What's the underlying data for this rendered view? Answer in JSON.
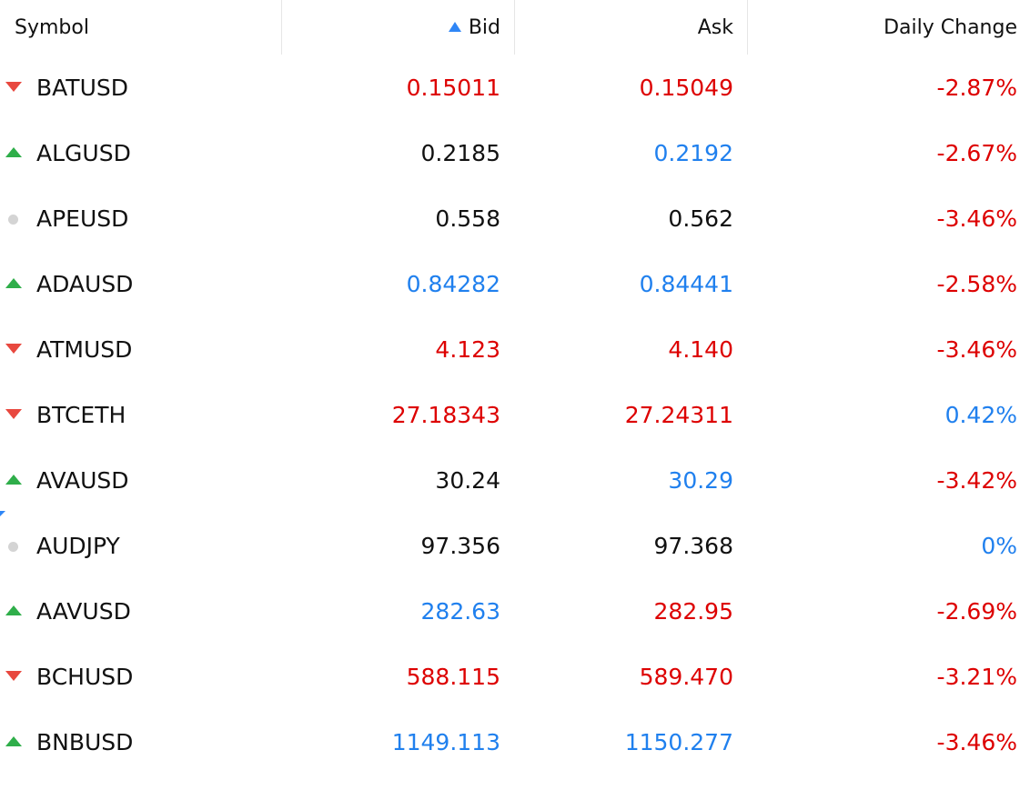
{
  "header": {
    "symbol": "Symbol",
    "bid": "Bid",
    "ask": "Ask",
    "daily_change": "Daily Change",
    "sort_icon": "sort-ascending-icon"
  },
  "colors": {
    "down": "#dd0000",
    "up": "#2080ee",
    "neutral": "#111111",
    "arrow_up": "#2fae4a",
    "arrow_down": "#e8483f",
    "sort_accent": "#2f86f6"
  },
  "rows": [
    {
      "symbol": "BATUSD",
      "trend": "down",
      "bid": "0.15011",
      "bid_color": "red",
      "ask": "0.15049",
      "ask_color": "red",
      "change": "-2.87%",
      "change_color": "red"
    },
    {
      "symbol": "ALGUSD",
      "trend": "up",
      "bid": "0.2185",
      "bid_color": "black",
      "ask": "0.2192",
      "ask_color": "blue",
      "change": "-2.67%",
      "change_color": "red"
    },
    {
      "symbol": "APEUSD",
      "trend": "flat",
      "bid": "0.558",
      "bid_color": "black",
      "ask": "0.562",
      "ask_color": "black",
      "change": "-3.46%",
      "change_color": "red"
    },
    {
      "symbol": "ADAUSD",
      "trend": "up",
      "bid": "0.84282",
      "bid_color": "blue",
      "ask": "0.84441",
      "ask_color": "blue",
      "change": "-2.58%",
      "change_color": "red"
    },
    {
      "symbol": "ATMUSD",
      "trend": "down",
      "bid": "4.123",
      "bid_color": "red",
      "ask": "4.140",
      "ask_color": "red",
      "change": "-3.46%",
      "change_color": "red"
    },
    {
      "symbol": "BTCETH",
      "trend": "down",
      "bid": "27.18343",
      "bid_color": "red",
      "ask": "27.24311",
      "ask_color": "red",
      "change": "0.42%",
      "change_color": "blue"
    },
    {
      "symbol": "AVAUSD",
      "trend": "up",
      "bid": "30.24",
      "bid_color": "black",
      "ask": "30.29",
      "ask_color": "blue",
      "change": "-3.42%",
      "change_color": "red"
    },
    {
      "symbol": "AUDJPY",
      "trend": "flat",
      "bid": "97.356",
      "bid_color": "black",
      "ask": "97.368",
      "ask_color": "black",
      "change": "0%",
      "change_color": "blue"
    },
    {
      "symbol": "AAVUSD",
      "trend": "up",
      "bid": "282.63",
      "bid_color": "blue",
      "ask": "282.95",
      "ask_color": "red",
      "change": "-2.69%",
      "change_color": "red"
    },
    {
      "symbol": "BCHUSD",
      "trend": "down",
      "bid": "588.115",
      "bid_color": "red",
      "ask": "589.470",
      "ask_color": "red",
      "change": "-3.21%",
      "change_color": "red"
    },
    {
      "symbol": "BNBUSD",
      "trend": "up",
      "bid": "1149.113",
      "bid_color": "blue",
      "ask": "1150.277",
      "ask_color": "blue",
      "change": "-3.46%",
      "change_color": "red"
    }
  ]
}
